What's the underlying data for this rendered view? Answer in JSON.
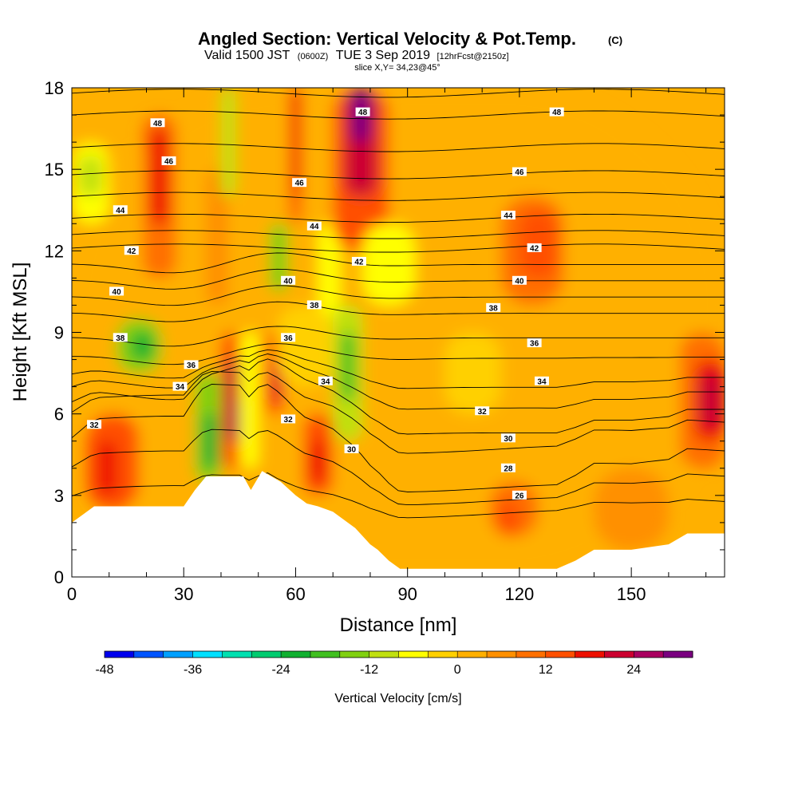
{
  "header": {
    "title": "Angled Section: Vertical Velocity & Pot.Temp.",
    "title_suffix": "(C)",
    "valid_prefix": "Valid 1500 JST",
    "valid_zulu": "(0600Z)",
    "valid_date": "TUE 3 Sep 2019",
    "forecast_info": "[12hrFcst@2150z]",
    "slice": "slice X,Y= 34,23@45°"
  },
  "chart_data": {
    "type": "heatmap",
    "xlabel": "Distance [nm]",
    "ylabel": "Height [Kft MSL]",
    "xlim": [
      0,
      175
    ],
    "ylim": [
      0,
      18
    ],
    "x_ticks": [
      "0",
      "30",
      "60",
      "90",
      "120",
      "150"
    ],
    "y_ticks": [
      "0",
      "3",
      "6",
      "9",
      "12",
      "15",
      "18"
    ],
    "colorbar": {
      "label": "Vertical Velocity [cm/s]",
      "tick_labels": [
        "-48",
        "-36",
        "-24",
        "-12",
        "0",
        "12",
        "24"
      ],
      "levels": [
        -48,
        -44,
        -40,
        -36,
        -32,
        -28,
        -24,
        -20,
        -16,
        -12,
        -8,
        -4,
        0,
        4,
        8,
        12,
        16,
        20,
        24,
        28,
        32
      ],
      "colors": [
        "#0000ee",
        "#0055ff",
        "#00a0ff",
        "#00e0ff",
        "#00e0b0",
        "#00cc70",
        "#10b030",
        "#40c020",
        "#80d010",
        "#c0e010",
        "#ffff00",
        "#ffd000",
        "#ffb000",
        "#ff9000",
        "#ff7000",
        "#ff5000",
        "#ee1000",
        "#cc0030",
        "#aa0060",
        "#7a0080"
      ]
    },
    "vertical_velocity_cells": [
      {
        "x": [
          0,
          175
        ],
        "y": [
          0,
          18
        ],
        "w": 2
      },
      {
        "x": [
          0,
          10
        ],
        "y": [
          13,
          16
        ],
        "w": -6
      },
      {
        "x": [
          2,
          8
        ],
        "y": [
          14,
          15.5
        ],
        "w": -10
      },
      {
        "x": [
          4,
          18
        ],
        "y": [
          2.5,
          6
        ],
        "w": 12
      },
      {
        "x": [
          7,
          12
        ],
        "y": [
          3,
          5
        ],
        "w": 18
      },
      {
        "x": [
          12,
          24
        ],
        "y": [
          7.5,
          9.5
        ],
        "w": -14
      },
      {
        "x": [
          16,
          22
        ],
        "y": [
          8,
          9
        ],
        "w": -22
      },
      {
        "x": [
          19,
          28
        ],
        "y": [
          11,
          17
        ],
        "w": 10
      },
      {
        "x": [
          21,
          26
        ],
        "y": [
          13,
          16.5
        ],
        "w": 16
      },
      {
        "x": [
          36,
          42
        ],
        "y": [
          10,
          15
        ],
        "w": 6
      },
      {
        "x": [
          33,
          40
        ],
        "y": [
          3.5,
          7.5
        ],
        "w": -14
      },
      {
        "x": [
          35,
          39
        ],
        "y": [
          4,
          6
        ],
        "w": -22
      },
      {
        "x": [
          40,
          46
        ],
        "y": [
          4,
          9
        ],
        "w": 12
      },
      {
        "x": [
          41,
          45
        ],
        "y": [
          5,
          8
        ],
        "w": 20
      },
      {
        "x": [
          44,
          47
        ],
        "y": [
          5,
          6.5
        ],
        "w": 28
      },
      {
        "x": [
          40,
          44
        ],
        "y": [
          14,
          18
        ],
        "w": -10
      },
      {
        "x": [
          45,
          50
        ],
        "y": [
          4,
          9
        ],
        "w": -6
      },
      {
        "x": [
          52,
          57
        ],
        "y": [
          6,
          9
        ],
        "w": 14
      },
      {
        "x": [
          54,
          56
        ],
        "y": [
          6.5,
          8
        ],
        "w": 20
      },
      {
        "x": [
          53,
          58
        ],
        "y": [
          10.5,
          13
        ],
        "w": -14
      },
      {
        "x": [
          58,
          62
        ],
        "y": [
          13,
          18
        ],
        "w": 10
      },
      {
        "x": [
          59,
          61
        ],
        "y": [
          14,
          18
        ],
        "w": 18
      },
      {
        "x": [
          62,
          70
        ],
        "y": [
          3,
          6
        ],
        "w": 12
      },
      {
        "x": [
          64,
          68
        ],
        "y": [
          3.5,
          5
        ],
        "w": 18
      },
      {
        "x": [
          66,
          72
        ],
        "y": [
          9,
          13
        ],
        "w": -8
      },
      {
        "x": [
          70,
          78
        ],
        "y": [
          5,
          10
        ],
        "w": -12
      },
      {
        "x": [
          72,
          76
        ],
        "y": [
          6.5,
          9
        ],
        "w": -18
      },
      {
        "x": [
          70,
          85
        ],
        "y": [
          12,
          18
        ],
        "w": 14
      },
      {
        "x": [
          73,
          82
        ],
        "y": [
          14,
          18
        ],
        "w": 20
      },
      {
        "x": [
          75,
          80
        ],
        "y": [
          16,
          18
        ],
        "w": 28
      },
      {
        "x": [
          78,
          92
        ],
        "y": [
          10,
          13
        ],
        "w": -6
      },
      {
        "x": [
          55,
          70
        ],
        "y": [
          7,
          10
        ],
        "w": -4
      },
      {
        "x": [
          100,
          115
        ],
        "y": [
          6,
          9
        ],
        "w": -4
      },
      {
        "x": [
          115,
          132
        ],
        "y": [
          10,
          14
        ],
        "w": 10
      },
      {
        "x": [
          120,
          130
        ],
        "y": [
          11,
          13.5
        ],
        "w": 14
      },
      {
        "x": [
          112,
          125
        ],
        "y": [
          1.5,
          3.5
        ],
        "w": 8
      },
      {
        "x": [
          114,
          120
        ],
        "y": [
          1.5,
          2.8
        ],
        "w": 12
      },
      {
        "x": [
          140,
          160
        ],
        "y": [
          1,
          4
        ],
        "w": 4
      },
      {
        "x": [
          163,
          175
        ],
        "y": [
          4,
          9
        ],
        "w": 10
      },
      {
        "x": [
          167,
          175
        ],
        "y": [
          5,
          8
        ],
        "w": 16
      },
      {
        "x": [
          168,
          175
        ],
        "y": [
          5.5,
          7.5
        ],
        "w": 20
      }
    ],
    "terrain": {
      "x": [
        0,
        3,
        6,
        10,
        20,
        30,
        33,
        36,
        46,
        48,
        51,
        56,
        60,
        63,
        66,
        70,
        73,
        76,
        80,
        82,
        85,
        88,
        110,
        130,
        135,
        140,
        150,
        160,
        165,
        175
      ],
      "height": [
        2,
        2.3,
        2.6,
        2.6,
        2.6,
        2.6,
        3.2,
        3.7,
        3.7,
        3.2,
        3.9,
        3.5,
        3.0,
        2.7,
        2.6,
        2.4,
        2.1,
        1.8,
        1.2,
        1.0,
        0.6,
        0.3,
        0.3,
        0.3,
        0.6,
        1.0,
        1.0,
        1.2,
        1.6,
        1.6
      ]
    },
    "isotherm_labels": [
      {
        "label": "48",
        "x": 23,
        "y": 16.7
      },
      {
        "label": "48",
        "x": 78,
        "y": 17.1
      },
      {
        "label": "48",
        "x": 130,
        "y": 17.1
      },
      {
        "label": "46",
        "x": 26,
        "y": 15.3
      },
      {
        "label": "46",
        "x": 61,
        "y": 14.5
      },
      {
        "label": "46",
        "x": 120,
        "y": 14.9
      },
      {
        "label": "44",
        "x": 13,
        "y": 13.5
      },
      {
        "label": "44",
        "x": 65,
        "y": 12.9
      },
      {
        "label": "44",
        "x": 117,
        "y": 13.3
      },
      {
        "label": "42",
        "x": 16,
        "y": 12.0
      },
      {
        "label": "42",
        "x": 77,
        "y": 11.6
      },
      {
        "label": "42",
        "x": 124,
        "y": 12.1
      },
      {
        "label": "40",
        "x": 12,
        "y": 10.5
      },
      {
        "label": "40",
        "x": 58,
        "y": 10.9
      },
      {
        "label": "40",
        "x": 120,
        "y": 10.9
      },
      {
        "label": "38",
        "x": 13,
        "y": 8.8
      },
      {
        "label": "38",
        "x": 65,
        "y": 10.0
      },
      {
        "label": "38",
        "x": 113,
        "y": 9.9
      },
      {
        "label": "36",
        "x": 32,
        "y": 7.8
      },
      {
        "label": "36",
        "x": 58,
        "y": 8.8
      },
      {
        "label": "36",
        "x": 124,
        "y": 8.6
      },
      {
        "label": "34",
        "x": 29,
        "y": 7.0
      },
      {
        "label": "34",
        "x": 68,
        "y": 7.2
      },
      {
        "label": "34",
        "x": 126,
        "y": 7.2
      },
      {
        "label": "32",
        "x": 6,
        "y": 5.6
      },
      {
        "label": "32",
        "x": 58,
        "y": 5.8
      },
      {
        "label": "32",
        "x": 110,
        "y": 6.1
      },
      {
        "label": "30",
        "x": 75,
        "y": 4.7
      },
      {
        "label": "30",
        "x": 117,
        "y": 5.1
      },
      {
        "label": "28",
        "x": 117,
        "y": 4.0
      },
      {
        "label": "26",
        "x": 120,
        "y": 3.0
      }
    ],
    "isotherm_levels": [
      26,
      28,
      30,
      32,
      33,
      34,
      35,
      36,
      37,
      38,
      39,
      40,
      41,
      42,
      43,
      44,
      45,
      46,
      47,
      48,
      49
    ]
  }
}
